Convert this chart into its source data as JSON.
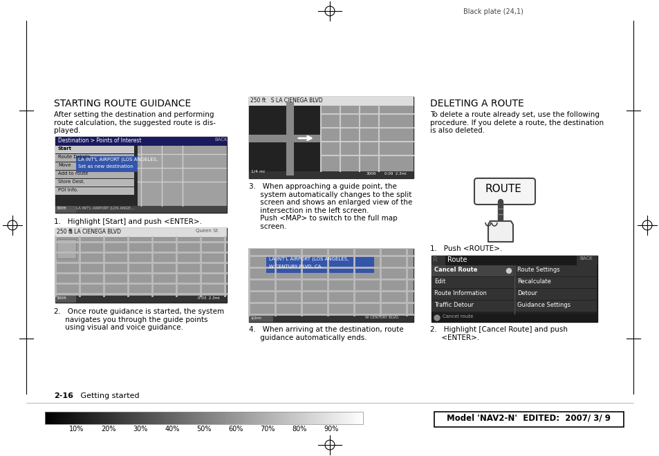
{
  "page_bg": "#ffffff",
  "top_label": "Black plate (24,1)",
  "section1_title": "STARTING ROUTE GUIDANCE",
  "section1_text1": "After setting the destination and performing\nroute calculation, the suggested route is dis-\nplayed.",
  "step1_text": "1.   Highlight [Start] and push <ENTER>.",
  "step2_text": "2.   Once route guidance is started, the system\n     navigates you through the guide points\n     using visual and voice guidance.",
  "step3_text": "3.   When approaching a guide point, the\n     system automatically changes to the split\n     screen and shows an enlarged view of the\n     intersection in the left screen.\n     Push <MAP> to switch to the full map\n     screen.",
  "step4_text": "4.   When arriving at the destination, route\n     guidance automatically ends.",
  "section2_title": "DELETING A ROUTE",
  "section2_text": "To delete a route already set, use the following\nprocedure. If you delete a route, the destination\nis also deleted.",
  "del_step1_text": "1.   Push <ROUTE>.",
  "del_step2_text": "2.   Highlight [Cancel Route] and push\n     <ENTER>.",
  "footer_section": "2-16    Getting started",
  "footer_right": "Model 'NAV2-N'  EDITED:  2007/ 3/ 9",
  "gray_scale_labels": [
    "10%",
    "20%",
    "30%",
    "40%",
    "50%",
    "60%",
    "70%",
    "80%",
    "90%"
  ],
  "route_menu_items_left": [
    "Cancel Route",
    "Edit",
    "Route Information",
    "Traffic Detour"
  ],
  "route_menu_items_right": [
    "Route Settings",
    "Recalculate",
    "Detour",
    "Guidance Settings"
  ]
}
